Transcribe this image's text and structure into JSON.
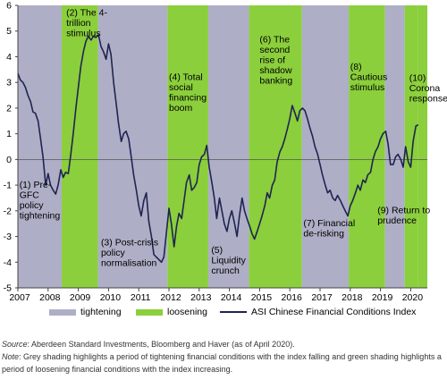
{
  "chart_data": {
    "type": "line",
    "ylim": [
      -5,
      6
    ],
    "xlim": [
      2007,
      2020.55
    ],
    "yticks": [
      "6",
      "5",
      "4",
      "3",
      "2",
      "1",
      "0",
      "-1",
      "-2",
      "-3",
      "-4",
      "-5"
    ],
    "xticks": [
      "2007",
      "2008",
      "2009",
      "2010",
      "2011",
      "2012",
      "2013",
      "2014",
      "2015",
      "2016",
      "2017",
      "2018",
      "2019",
      "2020"
    ],
    "colors": {
      "tightening": "#aeaec6",
      "loosening": "#8bcf3c",
      "line": "#1f2452"
    },
    "bands": [
      {
        "start": 2007.0,
        "end": 2008.45,
        "type": "tightening"
      },
      {
        "start": 2008.45,
        "end": 2009.65,
        "type": "loosening"
      },
      {
        "start": 2009.65,
        "end": 2011.95,
        "type": "tightening"
      },
      {
        "start": 2011.95,
        "end": 2013.3,
        "type": "loosening"
      },
      {
        "start": 2013.3,
        "end": 2014.65,
        "type": "tightening"
      },
      {
        "start": 2014.65,
        "end": 2016.4,
        "type": "loosening"
      },
      {
        "start": 2016.4,
        "end": 2017.95,
        "type": "tightening"
      },
      {
        "start": 2017.95,
        "end": 2019.15,
        "type": "loosening"
      },
      {
        "start": 2019.15,
        "end": 2019.8,
        "type": "tightening"
      },
      {
        "start": 2019.8,
        "end": 2020.25,
        "type": "loosening"
      },
      {
        "start": 2020.25,
        "end": 2020.55,
        "type": "loosening"
      }
    ],
    "series": [
      {
        "name": "ASI Chinese Financial Conditions Index",
        "points": [
          [
            2007.0,
            3.35
          ],
          [
            2007.08,
            3.1
          ],
          [
            2007.17,
            3.0
          ],
          [
            2007.25,
            2.8
          ],
          [
            2007.33,
            2.5
          ],
          [
            2007.42,
            2.25
          ],
          [
            2007.5,
            1.85
          ],
          [
            2007.58,
            1.8
          ],
          [
            2007.67,
            1.5
          ],
          [
            2007.75,
            0.8
          ],
          [
            2007.83,
            0.1
          ],
          [
            2007.92,
            -1.0
          ],
          [
            2008.0,
            -0.55
          ],
          [
            2008.08,
            -1.0
          ],
          [
            2008.17,
            -1.2
          ],
          [
            2008.25,
            -1.35
          ],
          [
            2008.33,
            -1.0
          ],
          [
            2008.42,
            -0.4
          ],
          [
            2008.5,
            -0.7
          ],
          [
            2008.58,
            -0.5
          ],
          [
            2008.67,
            -0.55
          ],
          [
            2008.75,
            0.2
          ],
          [
            2008.83,
            1.0
          ],
          [
            2008.92,
            2.0
          ],
          [
            2009.0,
            2.8
          ],
          [
            2009.08,
            3.6
          ],
          [
            2009.17,
            4.2
          ],
          [
            2009.25,
            4.6
          ],
          [
            2009.33,
            4.8
          ],
          [
            2009.42,
            4.65
          ],
          [
            2009.5,
            4.8
          ],
          [
            2009.58,
            4.75
          ],
          [
            2009.67,
            4.85
          ],
          [
            2009.75,
            4.4
          ],
          [
            2009.83,
            4.2
          ],
          [
            2009.92,
            3.9
          ],
          [
            2010.0,
            4.5
          ],
          [
            2010.08,
            4.1
          ],
          [
            2010.17,
            3.0
          ],
          [
            2010.25,
            2.2
          ],
          [
            2010.33,
            1.4
          ],
          [
            2010.42,
            0.7
          ],
          [
            2010.5,
            1.0
          ],
          [
            2010.58,
            1.1
          ],
          [
            2010.67,
            0.8
          ],
          [
            2010.75,
            0.1
          ],
          [
            2010.83,
            -0.6
          ],
          [
            2010.92,
            -1.2
          ],
          [
            2011.0,
            -1.8
          ],
          [
            2011.08,
            -2.2
          ],
          [
            2011.17,
            -1.6
          ],
          [
            2011.25,
            -1.3
          ],
          [
            2011.33,
            -2.4
          ],
          [
            2011.42,
            -3.0
          ],
          [
            2011.5,
            -3.7
          ],
          [
            2011.58,
            -3.8
          ],
          [
            2011.67,
            -3.9
          ],
          [
            2011.75,
            -4.0
          ],
          [
            2011.83,
            -3.8
          ],
          [
            2011.92,
            -2.8
          ],
          [
            2012.0,
            -1.9
          ],
          [
            2012.08,
            -2.5
          ],
          [
            2012.17,
            -3.4
          ],
          [
            2012.25,
            -2.6
          ],
          [
            2012.33,
            -2.1
          ],
          [
            2012.42,
            -2.3
          ],
          [
            2012.5,
            -1.6
          ],
          [
            2012.58,
            -0.9
          ],
          [
            2012.67,
            -0.6
          ],
          [
            2012.75,
            -1.2
          ],
          [
            2012.83,
            -1.1
          ],
          [
            2012.92,
            -0.9
          ],
          [
            2013.0,
            -0.2
          ],
          [
            2013.08,
            0.1
          ],
          [
            2013.17,
            0.2
          ],
          [
            2013.25,
            0.55
          ],
          [
            2013.33,
            -0.3
          ],
          [
            2013.42,
            -0.9
          ],
          [
            2013.5,
            -1.5
          ],
          [
            2013.58,
            -2.3
          ],
          [
            2013.67,
            -1.5
          ],
          [
            2013.75,
            -2.0
          ],
          [
            2013.83,
            -2.5
          ],
          [
            2013.92,
            -2.8
          ],
          [
            2014.0,
            -2.3
          ],
          [
            2014.08,
            -2.0
          ],
          [
            2014.17,
            -2.5
          ],
          [
            2014.25,
            -3.0
          ],
          [
            2014.33,
            -2.2
          ],
          [
            2014.42,
            -1.5
          ],
          [
            2014.5,
            -2.0
          ],
          [
            2014.58,
            -2.3
          ],
          [
            2014.67,
            -2.6
          ],
          [
            2014.75,
            -2.9
          ],
          [
            2014.83,
            -3.1
          ],
          [
            2014.92,
            -2.8
          ],
          [
            2015.0,
            -2.5
          ],
          [
            2015.08,
            -2.2
          ],
          [
            2015.17,
            -1.8
          ],
          [
            2015.25,
            -1.3
          ],
          [
            2015.33,
            -1.5
          ],
          [
            2015.42,
            -1.0
          ],
          [
            2015.5,
            -0.8
          ],
          [
            2015.58,
            -0.1
          ],
          [
            2015.67,
            0.3
          ],
          [
            2015.75,
            0.5
          ],
          [
            2015.83,
            0.8
          ],
          [
            2015.92,
            1.2
          ],
          [
            2016.0,
            1.6
          ],
          [
            2016.08,
            2.1
          ],
          [
            2016.17,
            1.8
          ],
          [
            2016.25,
            1.5
          ],
          [
            2016.33,
            1.9
          ],
          [
            2016.42,
            2.0
          ],
          [
            2016.5,
            1.9
          ],
          [
            2016.58,
            1.6
          ],
          [
            2016.67,
            1.2
          ],
          [
            2016.75,
            0.9
          ],
          [
            2016.83,
            0.5
          ],
          [
            2016.92,
            0.2
          ],
          [
            2017.0,
            -0.2
          ],
          [
            2017.08,
            -0.6
          ],
          [
            2017.17,
            -1.0
          ],
          [
            2017.25,
            -1.3
          ],
          [
            2017.33,
            -1.2
          ],
          [
            2017.42,
            -1.5
          ],
          [
            2017.5,
            -1.6
          ],
          [
            2017.58,
            -1.4
          ],
          [
            2017.67,
            -1.6
          ],
          [
            2017.75,
            -1.8
          ],
          [
            2017.83,
            -2.0
          ],
          [
            2017.92,
            -2.2
          ],
          [
            2018.0,
            -1.8
          ],
          [
            2018.08,
            -1.6
          ],
          [
            2018.17,
            -1.3
          ],
          [
            2018.25,
            -1.0
          ],
          [
            2018.33,
            -1.2
          ],
          [
            2018.42,
            -0.8
          ],
          [
            2018.5,
            -0.9
          ],
          [
            2018.58,
            -0.6
          ],
          [
            2018.67,
            -0.5
          ],
          [
            2018.75,
            0.0
          ],
          [
            2018.83,
            0.3
          ],
          [
            2018.92,
            0.5
          ],
          [
            2019.0,
            0.8
          ],
          [
            2019.08,
            1.0
          ],
          [
            2019.17,
            1.1
          ],
          [
            2019.25,
            0.6
          ],
          [
            2019.33,
            -0.2
          ],
          [
            2019.42,
            -0.2
          ],
          [
            2019.5,
            0.1
          ],
          [
            2019.58,
            0.2
          ],
          [
            2019.67,
            0.0
          ],
          [
            2019.75,
            -0.3
          ],
          [
            2019.83,
            0.5
          ],
          [
            2019.92,
            -0.1
          ],
          [
            2020.0,
            -0.3
          ],
          [
            2020.08,
            0.7
          ],
          [
            2020.17,
            1.3
          ],
          [
            2020.25,
            1.35
          ]
        ]
      }
    ],
    "annotations": [
      {
        "lines": [
          "(1) Pre-",
          "GFC",
          "policy",
          "tightening"
        ],
        "x": 2007.05,
        "y": -1.1
      },
      {
        "lines": [
          "(2) The 4-",
          "trillion",
          "stimulus"
        ],
        "x": 2008.6,
        "y": 5.6
      },
      {
        "lines": [
          "(3) Post-crisis",
          "policy",
          "normalisation"
        ],
        "x": 2009.75,
        "y": -3.35
      },
      {
        "lines": [
          "(4) Total",
          "social",
          "financing",
          "boom"
        ],
        "x": 2012.0,
        "y": 3.1
      },
      {
        "lines": [
          "(5)",
          "Liquidity",
          "crunch"
        ],
        "x": 2013.4,
        "y": -3.65
      },
      {
        "lines": [
          "(6) The",
          "second",
          "rise of",
          "shadow",
          "banking"
        ],
        "x": 2015.0,
        "y": 4.55
      },
      {
        "lines": [
          "(7) Financial",
          "de-risking"
        ],
        "x": 2016.45,
        "y": -2.6
      },
      {
        "lines": [
          "(8)",
          "Cautious",
          "stimulus"
        ],
        "x": 2018.0,
        "y": 3.5
      },
      {
        "lines": [
          "(9) Return to",
          "prudence"
        ],
        "x": 2018.9,
        "y": -2.1
      },
      {
        "lines": [
          "(10)",
          "Corona",
          "response"
        ],
        "x": 2019.95,
        "y": 3.05
      }
    ]
  },
  "legend": {
    "tightening": "tightening",
    "loosening": "loosening",
    "line": "ASI Chinese Financial Conditions Index"
  },
  "footnote": {
    "source_label": "Source",
    "source_text": ": Aberdeen Standard Investments, Bloomberg and Haver (as of April 2020).",
    "note_label": "Note",
    "note_text": ": Grey shading highlights a period of tightening financial conditions with the index falling and green shading highlights a period of loosening financial conditions with the index increasing."
  }
}
